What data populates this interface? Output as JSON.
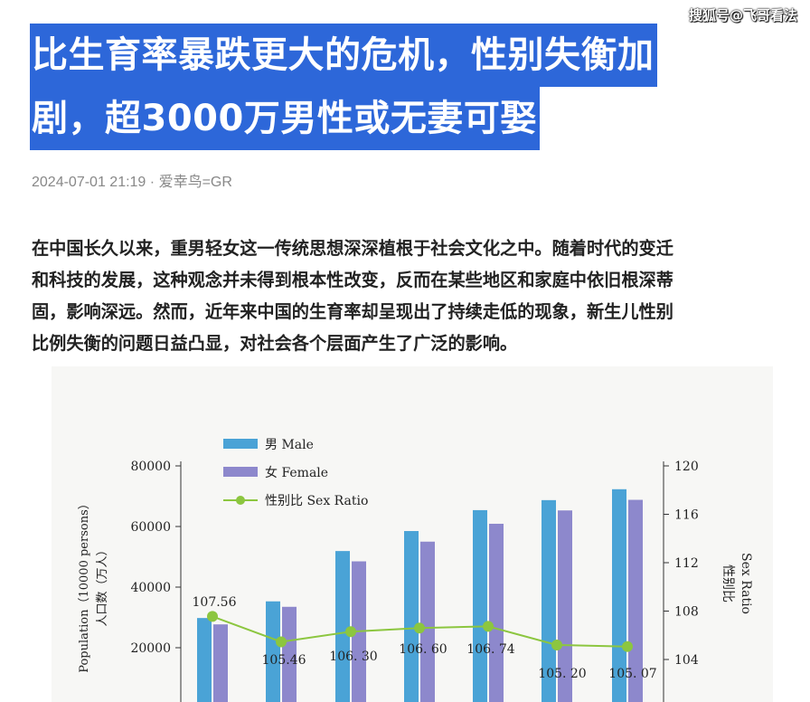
{
  "watermark": "搜狐号@飞哥看法",
  "article": {
    "title_lines": [
      "比生育率暴跌更大的危机，性别失衡加",
      "剧，超3000万男性或无妻可娶"
    ],
    "date": "2024-07-01 21:19",
    "separator": "·",
    "author": "爱幸鸟=GR",
    "body_lines": [
      "在中国长久以来，重男轻女这一传统思想深深植根于社会文化之中。随着时代的变迁",
      "和科技的发展，这种观念并未得到根本性改变，反而在某些地区和家庭中依旧根深蒂",
      "固，影响深远。然而，近年来中国的生育率却呈现出了持续走低的现象，新生儿性别",
      "比例失衡的问题日益凸显，对社会各个层面产生了广泛的影响。"
    ]
  },
  "chart_data": {
    "type": "bar",
    "legend": [
      "男 Male",
      "女 Female",
      "性别比 Sex Ratio"
    ],
    "legend_position": "top-left",
    "ylabel_left": [
      "Population（10000 persons）",
      "人口数（万人）"
    ],
    "ylabel_right": [
      "Sex Ratio",
      "性别比"
    ],
    "y_left_ticks": [
      "80000",
      "60000",
      "40000",
      "20000"
    ],
    "y_right_ticks": [
      "120",
      "116",
      "112",
      "108",
      "104"
    ],
    "ylim_left": [
      0,
      80000
    ],
    "ylim_right": [
      100,
      120
    ],
    "series": [
      {
        "name": "男 Male",
        "color": "#4aa3d6",
        "values": [
          29800,
          35300,
          51900,
          58500,
          65400,
          68700,
          72300
        ]
      },
      {
        "name": "女 Female",
        "color": "#8d88cc",
        "values": [
          27700,
          33500,
          48500,
          55000,
          60900,
          65300,
          68800
        ]
      },
      {
        "name": "性别比 Sex Ratio",
        "color": "#8cc63f",
        "values": [
          107.56,
          105.46,
          106.3,
          106.6,
          106.74,
          105.2,
          105.07
        ]
      }
    ],
    "ratio_labels": [
      "107.56",
      "105.46",
      "106. 30",
      "106. 60",
      "106. 74",
      "105. 20",
      "105. 07"
    ]
  }
}
